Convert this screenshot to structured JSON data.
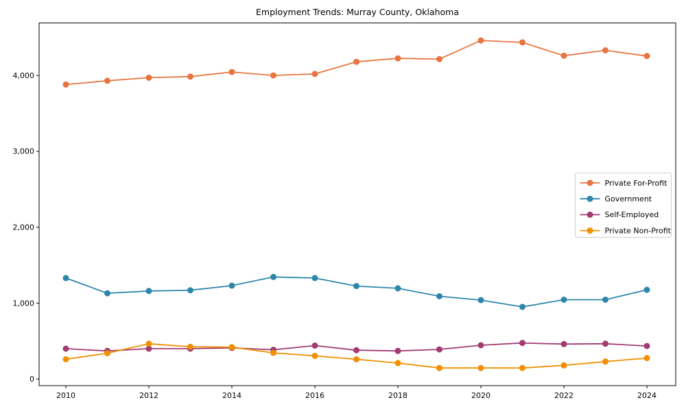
{
  "chart_data": {
    "type": "line",
    "title": "Employment Trends: Murray County, Oklahoma",
    "xlabel": "",
    "ylabel": "",
    "grid": false,
    "legend_position": "right",
    "x": [
      2010,
      2011,
      2012,
      2013,
      2014,
      2015,
      2016,
      2017,
      2018,
      2019,
      2020,
      2021,
      2022,
      2023,
      2024
    ],
    "series": [
      {
        "name": "Private For-Profit",
        "color": "#E8743F",
        "values": [
          3880,
          3930,
          3970,
          3985,
          4045,
          4000,
          4020,
          4180,
          4225,
          4215,
          4460,
          4435,
          4260,
          4330,
          4255
        ]
      },
      {
        "name": "Government",
        "color": "#2E86AB",
        "values": [
          1330,
          1130,
          1160,
          1170,
          1230,
          1345,
          1330,
          1225,
          1195,
          1090,
          1040,
          950,
          1045,
          1045,
          1175
        ]
      },
      {
        "name": "Self-Employed",
        "color": "#A23B72",
        "values": [
          400,
          370,
          400,
          400,
          410,
          385,
          440,
          380,
          370,
          390,
          445,
          475,
          460,
          465,
          435
        ]
      },
      {
        "name": "Private Non-Profit",
        "color": "#F18F01",
        "values": [
          260,
          340,
          465,
          425,
          420,
          345,
          305,
          260,
          210,
          145,
          145,
          145,
          180,
          230,
          275
        ]
      }
    ],
    "xticks": {
      "values": [
        2010,
        2012,
        2014,
        2016,
        2018,
        2020,
        2022,
        2024
      ],
      "labels": [
        "2010",
        "2012",
        "2014",
        "2016",
        "2018",
        "2020",
        "2022",
        "2024"
      ]
    },
    "yticks": {
      "values": [
        0,
        1000,
        2000,
        3000,
        4000
      ],
      "labels": [
        "0",
        "1,000",
        "2,000",
        "3,000",
        "4,000"
      ]
    },
    "xlim": [
      2009.36,
      2024.69
    ],
    "ylim": [
      -90,
      4690
    ],
    "axis_color": "#000000",
    "legend_border_color": "#cccccc",
    "legend_background": "#ffffff"
  }
}
